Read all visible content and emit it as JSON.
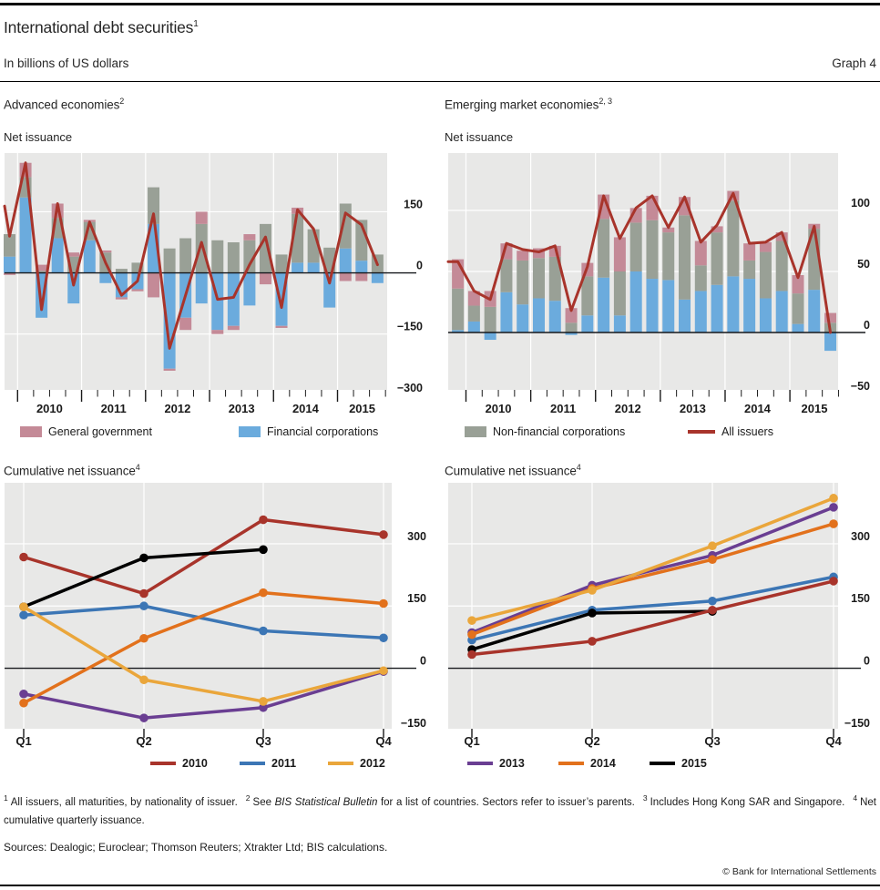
{
  "header": {
    "title": "International debt securities",
    "title_sup": "1",
    "subtitle": "In billions of US dollars",
    "graph_label": "Graph 4"
  },
  "colors": {
    "financial": "#6babdd",
    "nonfinancial": "#99a096",
    "government": "#c48a97",
    "all_issuers": "#a8342b",
    "y2010": "#a8342b",
    "y2011": "#3c76b5",
    "y2012": "#eaa63b",
    "y2013": "#6a3e92",
    "y2014": "#e2711c",
    "y2015": "#000000",
    "plot_bg": "#e8e8e7",
    "grid": "#ffffff",
    "zero_line": "#16181c",
    "tick": "#1a1a1a"
  },
  "sector_legend": [
    {
      "label": "General government",
      "color": "government",
      "swatch": "rect"
    },
    {
      "label": "Financial corporations",
      "color": "financial",
      "swatch": "rect"
    },
    {
      "label": "Non-financial corporations",
      "color": "nonfinancial",
      "swatch": "rect"
    },
    {
      "label": "All issuers",
      "color": "all_issuers",
      "swatch": "line"
    }
  ],
  "chart_data": [
    {
      "id": "advanced-net-issuance",
      "type": "stacked-bar-line",
      "panel_title": "Advanced economies",
      "panel_title_sup": "2",
      "subtitle": "Net issuance",
      "quarters": [
        "2009Q4",
        "2010Q1",
        "2010Q2",
        "2010Q3",
        "2010Q4",
        "2011Q1",
        "2011Q2",
        "2011Q3",
        "2011Q4",
        "2012Q1",
        "2012Q2",
        "2012Q3",
        "2012Q4",
        "2013Q1",
        "2013Q2",
        "2013Q3",
        "2013Q4",
        "2014Q1",
        "2014Q2",
        "2014Q3",
        "2014Q4",
        "2015Q1",
        "2015Q2",
        "2015Q3"
      ],
      "x_year_labels": [
        "2010",
        "2011",
        "2012",
        "2013",
        "2014",
        "2015"
      ],
      "series": [
        {
          "name": "Financial corporations",
          "color": "financial",
          "values": [
            40,
            185,
            -110,
            85,
            -75,
            80,
            -25,
            -60,
            -40,
            120,
            -235,
            -110,
            -75,
            -140,
            -130,
            -80,
            0,
            -130,
            25,
            25,
            -85,
            60,
            30,
            -25
          ]
        },
        {
          "name": "Non-financial corporations",
          "color": "nonfinancial",
          "values": [
            55,
            50,
            5,
            50,
            40,
            45,
            50,
            10,
            25,
            90,
            60,
            85,
            120,
            80,
            75,
            80,
            120,
            45,
            120,
            82,
            62,
            110,
            100,
            45
          ]
        },
        {
          "name": "General government",
          "color": "government",
          "values": [
            -5,
            35,
            15,
            35,
            10,
            5,
            5,
            -5,
            -5,
            -60,
            -5,
            -30,
            30,
            -10,
            -10,
            15,
            -28,
            -5,
            15,
            0,
            0,
            -20,
            -20,
            0
          ]
        }
      ],
      "line": {
        "name": "All issuers",
        "color": "all_issuers",
        "lead": 164,
        "values": [
          90,
          270,
          -90,
          170,
          -30,
          125,
          25,
          -55,
          -20,
          145,
          -185,
          -55,
          75,
          -65,
          -60,
          20,
          88,
          -85,
          155,
          108,
          -25,
          147,
          118,
          20
        ]
      },
      "y_ticks": [
        {
          "label": "150",
          "value": 150
        },
        {
          "label": "0",
          "value": 0
        },
        {
          "label": "−150",
          "value": -150
        },
        {
          "label": "−300",
          "value": -300
        }
      ],
      "ylim": [
        -287,
        294
      ],
      "grid": true,
      "legend_position": "below"
    },
    {
      "id": "emerging-net-issuance",
      "type": "stacked-bar-line",
      "panel_title": "Emerging market economies",
      "panel_title_sup": "2, 3",
      "subtitle": "Net issuance",
      "quarters": [
        "2009Q4",
        "2010Q1",
        "2010Q2",
        "2010Q3",
        "2010Q4",
        "2011Q1",
        "2011Q2",
        "2011Q3",
        "2011Q4",
        "2012Q1",
        "2012Q2",
        "2012Q3",
        "2012Q4",
        "2013Q1",
        "2013Q2",
        "2013Q3",
        "2013Q4",
        "2014Q1",
        "2014Q2",
        "2014Q3",
        "2014Q4",
        "2015Q1",
        "2015Q2",
        "2015Q3"
      ],
      "x_year_labels": [
        "2010",
        "2011",
        "2012",
        "2013",
        "2014",
        "2015"
      ],
      "series": [
        {
          "name": "Financial corporations",
          "color": "financial",
          "values": [
            2,
            9,
            -6,
            33,
            23,
            28,
            26,
            -2,
            14,
            45,
            14,
            50,
            44,
            43,
            27,
            34,
            39,
            46,
            44,
            28,
            34,
            7,
            35,
            -15
          ]
        },
        {
          "name": "Non-financial corporations",
          "color": "nonfinancial",
          "values": [
            34,
            13,
            21,
            27,
            36,
            33,
            36,
            8,
            32,
            48,
            36,
            40,
            48,
            39,
            69,
            21,
            43,
            62,
            15,
            38,
            41,
            25,
            50,
            8
          ]
        },
        {
          "name": "General government",
          "color": "government",
          "values": [
            24,
            12,
            13,
            13,
            8,
            8,
            9,
            12,
            11,
            20,
            28,
            12,
            20,
            4,
            15,
            20,
            5,
            8,
            14,
            8,
            7,
            15,
            4,
            8
          ]
        }
      ],
      "line": {
        "name": "All issuers",
        "color": "all_issuers",
        "lead": 58,
        "values": [
          58,
          34,
          27,
          73,
          68,
          66,
          71,
          18,
          54,
          112,
          77,
          102,
          112,
          86,
          111,
          74,
          88,
          114,
          73,
          74,
          82,
          45,
          87,
          0
        ]
      },
      "y_ticks": [
        {
          "label": "100",
          "value": 100
        },
        {
          "label": "50",
          "value": 50
        },
        {
          "label": "0",
          "value": 0
        },
        {
          "label": "−50",
          "value": -50
        }
      ],
      "ylim": [
        -47,
        147
      ],
      "grid": true,
      "legend_position": "below"
    },
    {
      "id": "advanced-cumulative",
      "type": "line",
      "panel_title": "Cumulative net issuance",
      "panel_title_sup": "4",
      "x_labels": [
        "Q1",
        "Q2",
        "Q3",
        "Q4"
      ],
      "series": [
        {
          "name": "2010",
          "color": "y2010",
          "values": [
            268,
            180,
            358,
            322
          ]
        },
        {
          "name": "2011",
          "color": "y2011",
          "values": [
            128,
            150,
            90,
            73
          ]
        },
        {
          "name": "2012",
          "color": "y2012",
          "values": [
            148,
            -28,
            -80,
            -6
          ]
        },
        {
          "name": "2013",
          "color": "y2013",
          "values": [
            -62,
            -120,
            -95,
            -8
          ]
        },
        {
          "name": "2014",
          "color": "y2014",
          "values": [
            -84,
            72,
            182,
            156
          ]
        },
        {
          "name": "2015",
          "color": "y2015",
          "values": [
            148,
            266,
            286,
            null
          ]
        }
      ],
      "y_ticks": [
        {
          "label": "300",
          "value": 300
        },
        {
          "label": "150",
          "value": 150
        },
        {
          "label": "0",
          "value": 0
        },
        {
          "label": "−150",
          "value": -150
        }
      ],
      "ylim": [
        -146,
        447
      ],
      "grid": true,
      "legend_position": "below"
    },
    {
      "id": "emerging-cumulative",
      "type": "line",
      "panel_title": "Cumulative net issuance",
      "panel_title_sup": "4",
      "x_labels": [
        "Q1",
        "Q2",
        "Q3",
        "Q4"
      ],
      "series": [
        {
          "name": "2010",
          "color": "y2010",
          "values": [
            33,
            65,
            140,
            210
          ]
        },
        {
          "name": "2011",
          "color": "y2011",
          "values": [
            68,
            140,
            162,
            220
          ]
        },
        {
          "name": "2012",
          "color": "y2012",
          "values": [
            115,
            188,
            295,
            410
          ]
        },
        {
          "name": "2013",
          "color": "y2013",
          "values": [
            86,
            200,
            272,
            388
          ]
        },
        {
          "name": "2014",
          "color": "y2014",
          "values": [
            81,
            192,
            262,
            348
          ]
        },
        {
          "name": "2015",
          "color": "y2015",
          "values": [
            45,
            133,
            137,
            null
          ]
        }
      ],
      "y_ticks": [
        {
          "label": "300",
          "value": 300
        },
        {
          "label": "150",
          "value": 150
        },
        {
          "label": "0",
          "value": 0
        },
        {
          "label": "−150",
          "value": -150
        }
      ],
      "ylim": [
        -146,
        447
      ],
      "grid": true,
      "legend_position": "below"
    }
  ],
  "footnotes": [
    {
      "sup": "1",
      "text": "All issuers, all maturities, by nationality of issuer."
    },
    {
      "sup": "2",
      "pre": "See ",
      "italic": "BIS Statistical Bulletin",
      "text": " for a list of countries. Sectors refer to issuer’s parents."
    },
    {
      "sup": "3",
      "text": "Includes Hong Kong SAR and Singapore."
    },
    {
      "sup": "4",
      "text": "Net cumulative quarterly issuance."
    }
  ],
  "sources_label": "Sources: Dealogic; Euroclear; Thomson Reuters; Xtrakter Ltd; BIS calculations.",
  "copyright": "© Bank for International Settlements"
}
